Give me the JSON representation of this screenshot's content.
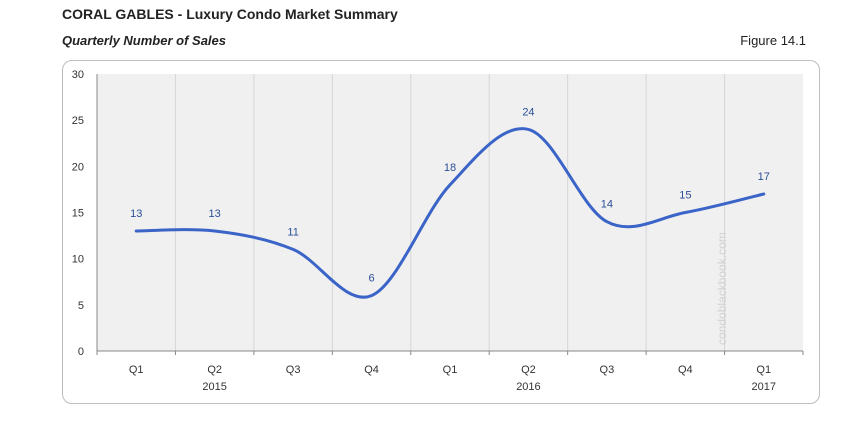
{
  "header": {
    "title": "CORAL GABLES - Luxury Condo Market Summary",
    "subtitle": "Quarterly Number of Sales",
    "figure_label": "Figure 14.1"
  },
  "watermark": "condoblackbook.com",
  "colors": {
    "line": "#3b64c8",
    "plot_bg": "#f0f0f0",
    "grid": "#d6d6d6",
    "data_label": "#2a4e96"
  },
  "chart_data": {
    "type": "line",
    "title": "Quarterly Number of Sales",
    "categories": [
      "Q1",
      "Q2",
      "Q3",
      "Q4",
      "Q1",
      "Q2",
      "Q3",
      "Q4",
      "Q1"
    ],
    "year_labels": [
      "",
      "2015",
      "",
      "",
      "",
      "2016",
      "",
      "",
      "2017"
    ],
    "values": [
      13,
      13,
      11,
      6,
      18,
      24,
      14,
      15,
      17
    ],
    "ylim": [
      0,
      30
    ],
    "yticks": [
      0,
      5,
      10,
      15,
      20,
      25,
      30
    ],
    "grid": "vertical",
    "smooth": true,
    "legend": "none"
  }
}
